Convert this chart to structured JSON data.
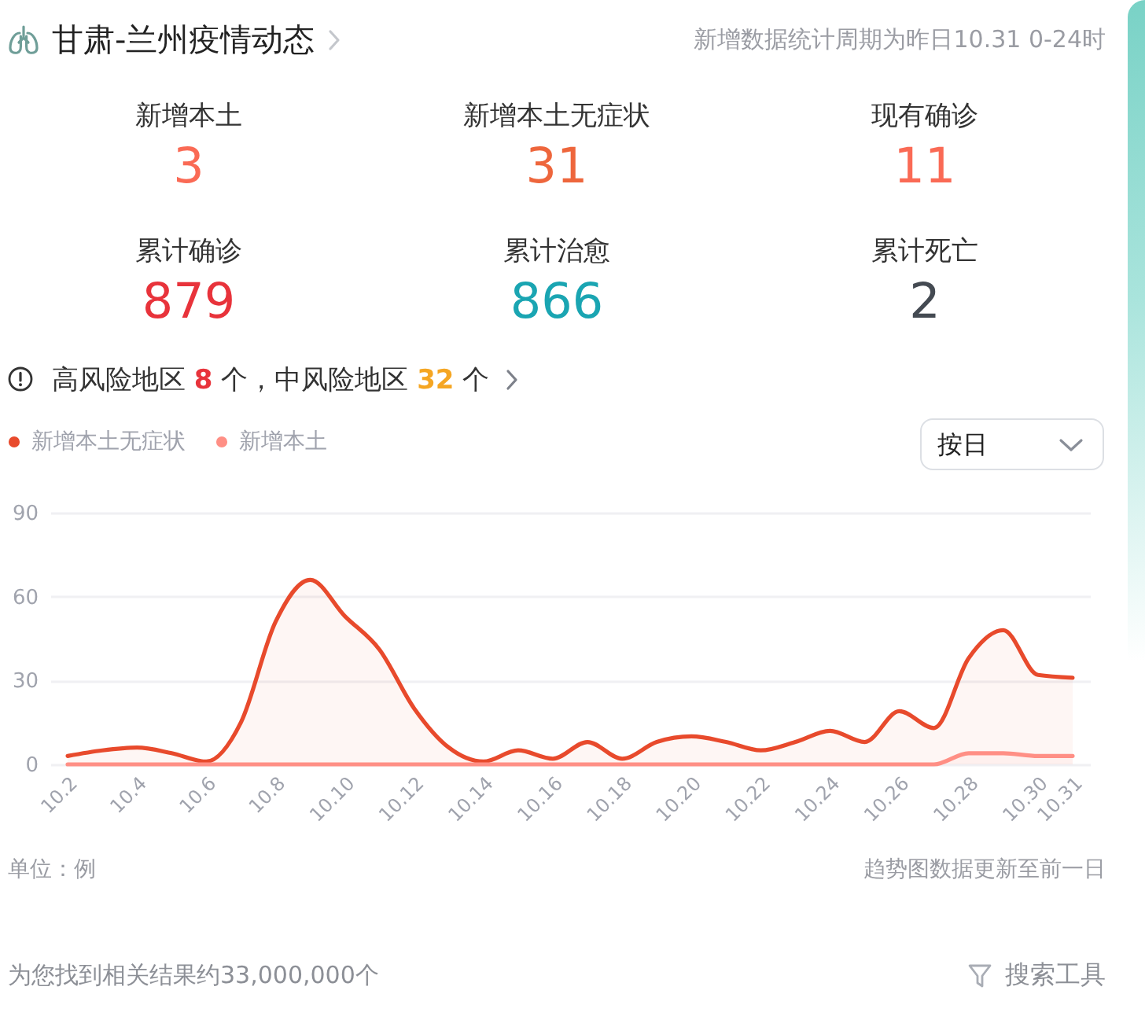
{
  "chart_data": [
    {
      "type": "other",
      "title": "甘肃-兰州疫情动态",
      "subtitle": "新增数据统计周期为昨日10.31 0-24时",
      "categories": [
        "新增本土",
        "新增本土无症状",
        "现有确诊",
        "累计确诊",
        "累计治愈",
        "累计死亡"
      ],
      "values": [
        3,
        31,
        11,
        879,
        866,
        2
      ],
      "colors": [
        "#fa6a55",
        "#ee663c",
        "#fa6a55",
        "#e8333b",
        "#1aa5b2",
        "#444a52"
      ],
      "data_labels": true,
      "annotations": [
        "高风险地区 8 个，中风险地区 32 个"
      ]
    },
    {
      "type": "area",
      "categories": [
        "10.2",
        null,
        "10.4",
        null,
        "10.6",
        null,
        "10.8",
        null,
        "10.10",
        null,
        "10.12",
        null,
        "10.14",
        null,
        "10.16",
        null,
        "10.18",
        null,
        "10.20",
        null,
        "10.22",
        null,
        "10.24",
        null,
        "10.26",
        null,
        "10.28",
        null,
        "10.30",
        "10.31"
      ],
      "series": [
        {
          "name": "新增本土无症状",
          "color": "#e84a2c",
          "values": [
            3,
            5,
            6,
            4,
            1,
            15,
            51,
            66,
            53,
            41,
            20,
            6,
            1,
            5,
            2,
            8,
            2,
            8,
            10,
            8,
            5,
            8,
            12,
            8,
            19,
            13,
            38,
            48,
            32,
            31
          ]
        },
        {
          "name": "新增本土",
          "color": "#ff8f85",
          "values": [
            0,
            0,
            0,
            0,
            0,
            0,
            0,
            0,
            0,
            0,
            0,
            0,
            0,
            0,
            0,
            0,
            0,
            0,
            0,
            0,
            0,
            0,
            0,
            0,
            0,
            0,
            4,
            4,
            3,
            3
          ]
        }
      ],
      "ylim": [
        0,
        90
      ],
      "yticks": [
        0,
        30,
        60,
        90
      ],
      "grid": "y",
      "legend": "top left",
      "annotations": [
        "按日",
        "单位：例",
        "趋势图数据更新至前一日",
        "为您找到相关结果约33,000,000个",
        "搜索工具"
      ]
    }
  ]
}
